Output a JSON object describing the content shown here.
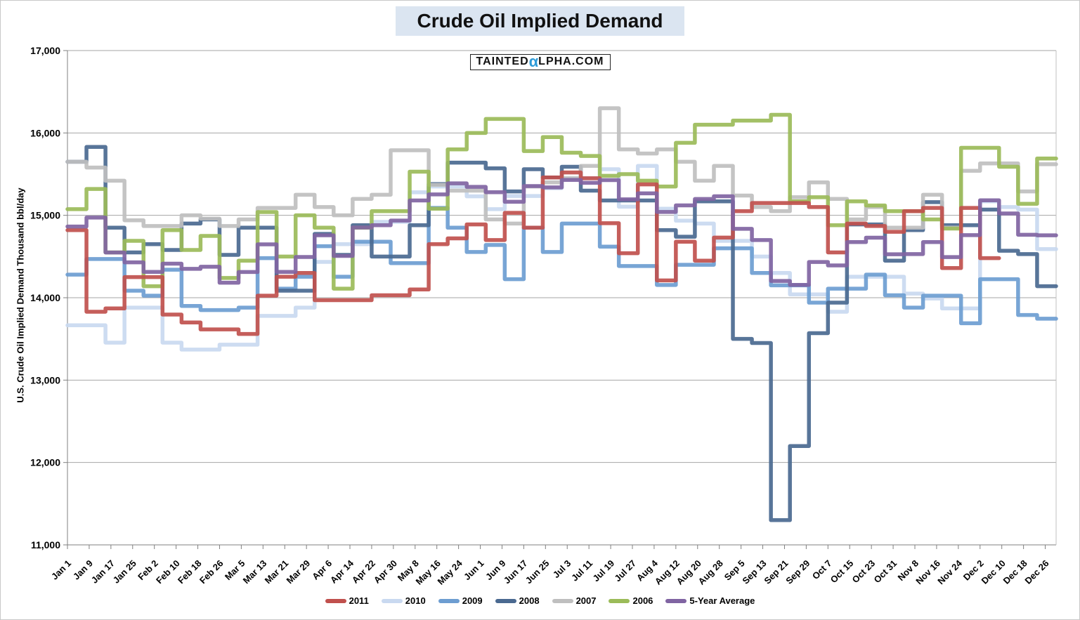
{
  "title": "Crude Oil Implied Demand",
  "watermark": {
    "display": "TAINTEDαLPHA.COM",
    "text_before_alpha": "TAINTED",
    "alpha": "α",
    "text_after_alpha": "LPHA.COM",
    "alpha_color": "#2e9bd8"
  },
  "chart_data": {
    "type": "line",
    "line_style": "step-after",
    "title": "Crude Oil Implied Demand",
    "xlabel": "",
    "ylabel": "U.S. Crude Oil Implied Demand Thousand bbl/day",
    "ylim": [
      11000,
      17000
    ],
    "yticks": [
      11000,
      12000,
      13000,
      14000,
      15000,
      16000,
      17000
    ],
    "ytick_labels": [
      "11,000",
      "12,000",
      "13,000",
      "14,000",
      "15,000",
      "16,000",
      "17,000"
    ],
    "grid": "horizontal",
    "legend_position": "bottom",
    "x_tick_labels": [
      "Jan 1",
      "Jan 9",
      "Jan 17",
      "Jan 25",
      "Feb 2",
      "Feb 10",
      "Feb 18",
      "Feb 26",
      "Mar 5",
      "Mar 13",
      "Mar 21",
      "Mar 29",
      "Apr 6",
      "Apr 14",
      "Apr 22",
      "Apr 30",
      "May 8",
      "May 16",
      "May 24",
      "Jun 1",
      "Jun 9",
      "Jun 17",
      "Jun 25",
      "Jul 3",
      "Jul 11",
      "Jul 19",
      "Jul 27",
      "Aug 4",
      "Aug 12",
      "Aug 20",
      "Aug 28",
      "Sep 5",
      "Sep 13",
      "Sep 21",
      "Sep 29",
      "Oct 7",
      "Oct 15",
      "Oct 23",
      "Oct 31",
      "Nov 8",
      "Nov 16",
      "Nov 24",
      "Dec 2",
      "Dec 10",
      "Dec 18",
      "Dec 26"
    ],
    "x_interval": "weekly data points, tick labels every 8 days",
    "series": [
      {
        "name": "2011",
        "color": "#c0504d",
        "values": [
          14820,
          13830,
          13870,
          14250,
          14250,
          13795,
          13700,
          13615,
          13615,
          13560,
          14025,
          14255,
          14300,
          13970,
          13970,
          13970,
          14030,
          14030,
          14100,
          14650,
          14720,
          14890,
          14700,
          15030,
          14850,
          15460,
          15520,
          15450,
          14905,
          14540,
          15375,
          14210,
          14680,
          14450,
          14730,
          15050,
          15150,
          15150,
          15150,
          15100,
          14550,
          14900,
          14870,
          14800,
          15050,
          15090,
          14360,
          15090,
          14480,
          null,
          null,
          null
        ]
      },
      {
        "name": "2010",
        "color": "#c9d9f0",
        "values": [
          13665,
          13665,
          13455,
          13880,
          13880,
          13455,
          13370,
          13370,
          13430,
          13430,
          13780,
          13780,
          13880,
          14435,
          14650,
          14650,
          14920,
          14920,
          15280,
          15350,
          15350,
          15230,
          15075,
          15235,
          15235,
          15330,
          15450,
          15450,
          15560,
          15105,
          15600,
          15080,
          14935,
          14900,
          14690,
          14690,
          14500,
          14300,
          14040,
          14040,
          13830,
          14255,
          14255,
          14255,
          14050,
          13990,
          13870,
          13870,
          15170,
          15100,
          15070,
          14590
        ]
      },
      {
        "name": "2009",
        "color": "#6d9dd1",
        "values": [
          14280,
          14470,
          14470,
          14085,
          14025,
          14340,
          13900,
          13850,
          13850,
          13880,
          14480,
          14110,
          14255,
          14625,
          14255,
          14680,
          14680,
          14420,
          14420,
          15090,
          14850,
          14555,
          14640,
          14225,
          14850,
          14555,
          14900,
          14900,
          14620,
          14385,
          14385,
          14155,
          14400,
          14400,
          14600,
          14600,
          14300,
          14150,
          14150,
          13940,
          14110,
          14110,
          14280,
          14030,
          13880,
          14025,
          14025,
          13690,
          14225,
          14225,
          13790,
          13745
        ]
      },
      {
        "name": "2008",
        "color": "#4a6990",
        "values": [
          15650,
          15830,
          14850,
          14550,
          14650,
          14580,
          14900,
          14950,
          14520,
          14850,
          14850,
          14085,
          14085,
          14775,
          14520,
          14880,
          14500,
          14500,
          14880,
          15380,
          15640,
          15640,
          15570,
          15290,
          15560,
          15460,
          15590,
          15300,
          15180,
          15180,
          15180,
          14820,
          14740,
          15170,
          15170,
          13500,
          13450,
          11300,
          12200,
          13570,
          13940,
          14890,
          14890,
          14450,
          14820,
          15160,
          14880,
          14880,
          15070,
          14570,
          14530,
          14140
        ]
      },
      {
        "name": "2007",
        "color": "#bfbfbf",
        "values": [
          15650,
          15580,
          15420,
          14940,
          14870,
          14870,
          15000,
          14960,
          14870,
          14950,
          15090,
          15090,
          15250,
          15100,
          15000,
          15200,
          15250,
          15790,
          15790,
          15370,
          15300,
          15300,
          14950,
          14900,
          15350,
          15400,
          15450,
          15600,
          16300,
          15800,
          15750,
          15800,
          15650,
          15420,
          15600,
          15240,
          15100,
          15050,
          15220,
          15400,
          15200,
          14950,
          15100,
          14850,
          14850,
          15250,
          14850,
          15540,
          15630,
          15630,
          15290,
          15620
        ]
      },
      {
        "name": "2006",
        "color": "#9bbb59",
        "values": [
          15075,
          15320,
          14550,
          14690,
          14140,
          14820,
          14580,
          14750,
          14240,
          14450,
          15040,
          14500,
          15000,
          14850,
          14110,
          14850,
          15050,
          15050,
          15530,
          15080,
          15800,
          16000,
          16170,
          16170,
          15780,
          15950,
          15760,
          15720,
          15480,
          15500,
          15420,
          15350,
          15880,
          16100,
          16100,
          16150,
          16150,
          16220,
          15170,
          15220,
          14880,
          15170,
          15120,
          15050,
          15050,
          14950,
          14840,
          15820,
          15820,
          15590,
          15140,
          15690
        ]
      },
      {
        "name": "5-Year Average",
        "color": "#8064a2",
        "derived": "average",
        "average_of": [
          "2010",
          "2009",
          "2008",
          "2007",
          "2006"
        ]
      }
    ]
  }
}
